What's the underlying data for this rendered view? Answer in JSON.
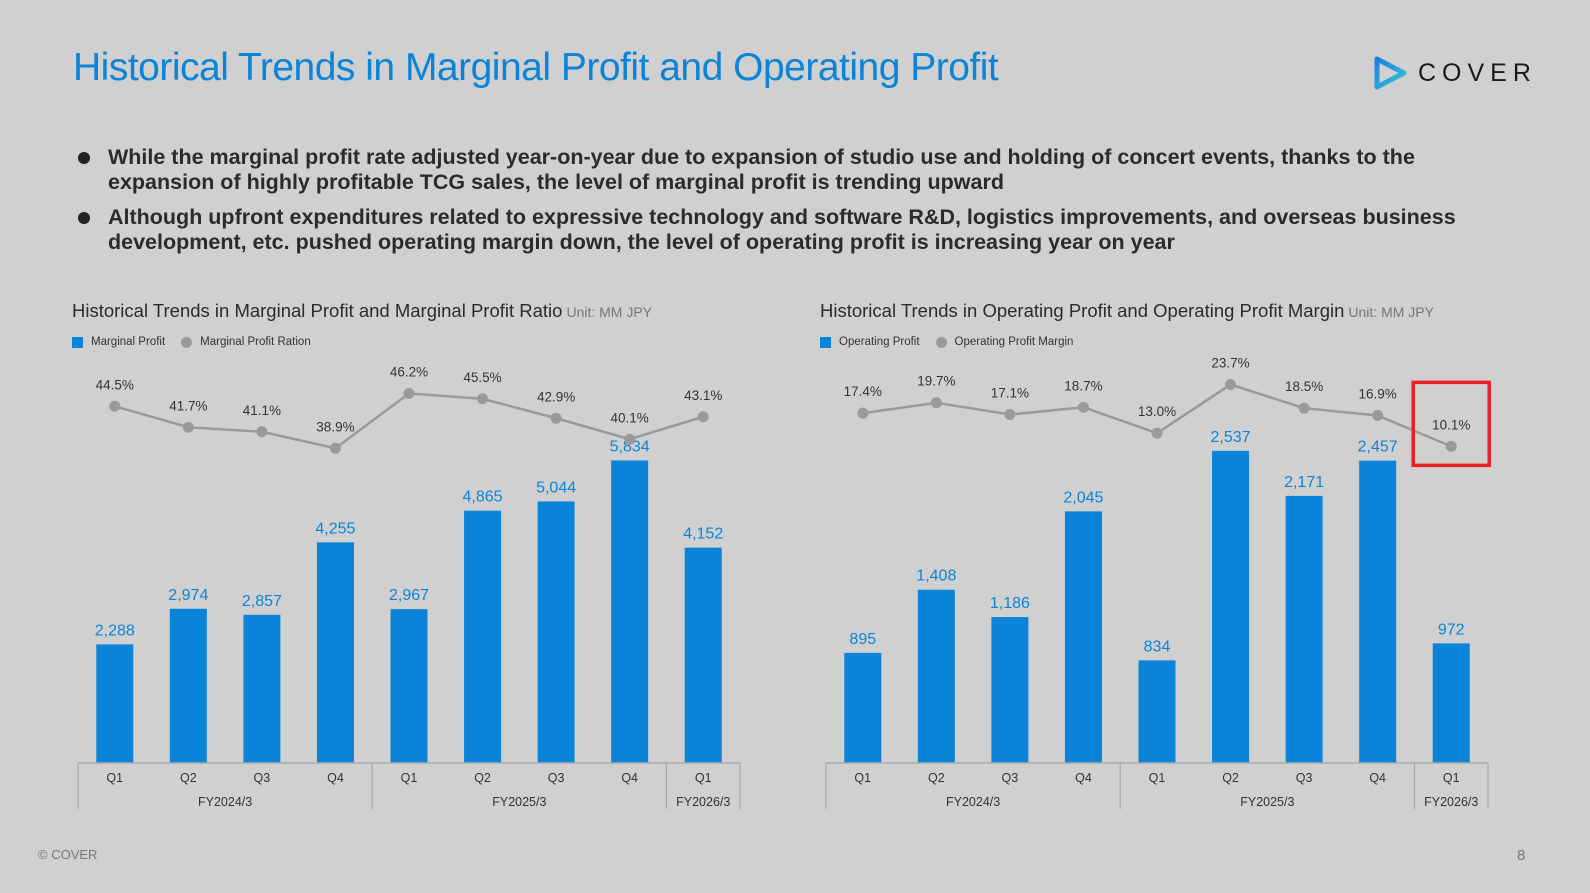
{
  "header": {
    "title": "Historical Trends in Marginal Profit and Operating Profit",
    "logo_text": "COVER"
  },
  "bullets": [
    "While the marginal profit rate adjusted year-on-year due to expansion of studio use and holding of concert events, thanks to the expansion of highly profitable TCG sales, the level of marginal profit is trending upward",
    "Although upfront expenditures related to expressive technology and software R&D, logistics improvements, and overseas business development, etc. pushed operating margin down, the level of operating profit is increasing year on year"
  ],
  "colors": {
    "bar": "#0a84d8",
    "line": "#9a9a9a",
    "highlight": "#e8202a",
    "title": "#0a84d8"
  },
  "footer": {
    "copyright": "© COVER",
    "page_number": "8"
  },
  "chart_data": [
    {
      "type": "bar",
      "title": "Historical Trends in Marginal Profit and Marginal Profit Ratio",
      "unit": "Unit: MM JPY",
      "legend": [
        "Marginal Profit",
        "Marginal Profit Ration"
      ],
      "legend_position": "top-left",
      "categories": [
        "Q1",
        "Q2",
        "Q3",
        "Q4",
        "Q1",
        "Q2",
        "Q3",
        "Q4",
        "Q1"
      ],
      "groups": [
        {
          "label": "FY2024/3",
          "count": 4
        },
        {
          "label": "FY2025/3",
          "count": 4
        },
        {
          "label": "FY2026/3",
          "count": 1
        }
      ],
      "series": [
        {
          "name": "Marginal Profit",
          "type": "bar",
          "values": [
            2288,
            2974,
            2857,
            4255,
            2967,
            4865,
            5044,
            5834,
            4152
          ],
          "labels": [
            "2,288",
            "2,974",
            "2,857",
            "4,255",
            "2,967",
            "4,865",
            "5,044",
            "5,834",
            "4,152"
          ]
        },
        {
          "name": "Marginal Profit Ration",
          "type": "line",
          "values": [
            44.5,
            41.7,
            41.1,
            38.9,
            46.2,
            45.5,
            42.9,
            40.1,
            43.1
          ],
          "labels": [
            "44.5%",
            "41.7%",
            "41.1%",
            "38.9%",
            "46.2%",
            "45.5%",
            "42.9%",
            "40.1%",
            "43.1%"
          ]
        }
      ],
      "bar_ylim": [
        0,
        7000
      ],
      "line_ylim": [
        30,
        50
      ],
      "grid": false,
      "highlight_index": null
    },
    {
      "type": "bar",
      "title": "Historical Trends in Operating Profit and Operating Profit Margin",
      "unit": "Unit: MM JPY",
      "legend": [
        "Operating Profit",
        "Operating Profit Margin"
      ],
      "legend_position": "top-left",
      "categories": [
        "Q1",
        "Q2",
        "Q3",
        "Q4",
        "Q1",
        "Q2",
        "Q3",
        "Q4",
        "Q1"
      ],
      "groups": [
        {
          "label": "FY2024/3",
          "count": 4
        },
        {
          "label": "FY2025/3",
          "count": 4
        },
        {
          "label": "FY2026/3",
          "count": 1
        }
      ],
      "series": [
        {
          "name": "Operating Profit",
          "type": "bar",
          "values": [
            895,
            1408,
            1186,
            2045,
            834,
            2537,
            2171,
            2457,
            972
          ],
          "labels": [
            "895",
            "1,408",
            "1,186",
            "2,045",
            "834",
            "2,537",
            "2,171",
            "2,457",
            "972"
          ]
        },
        {
          "name": "Operating Profit Margin",
          "type": "line",
          "values": [
            17.4,
            19.7,
            17.1,
            18.7,
            13.0,
            23.7,
            18.5,
            16.9,
            10.1
          ],
          "labels": [
            "17.4%",
            "19.7%",
            "17.1%",
            "18.7%",
            "13.0%",
            "23.7%",
            "18.5%",
            "16.9%",
            "10.1%"
          ]
        }
      ],
      "bar_ylim": [
        0,
        2950
      ],
      "line_ylim": [
        -5,
        28
      ],
      "grid": false,
      "highlight_index": 8
    }
  ]
}
